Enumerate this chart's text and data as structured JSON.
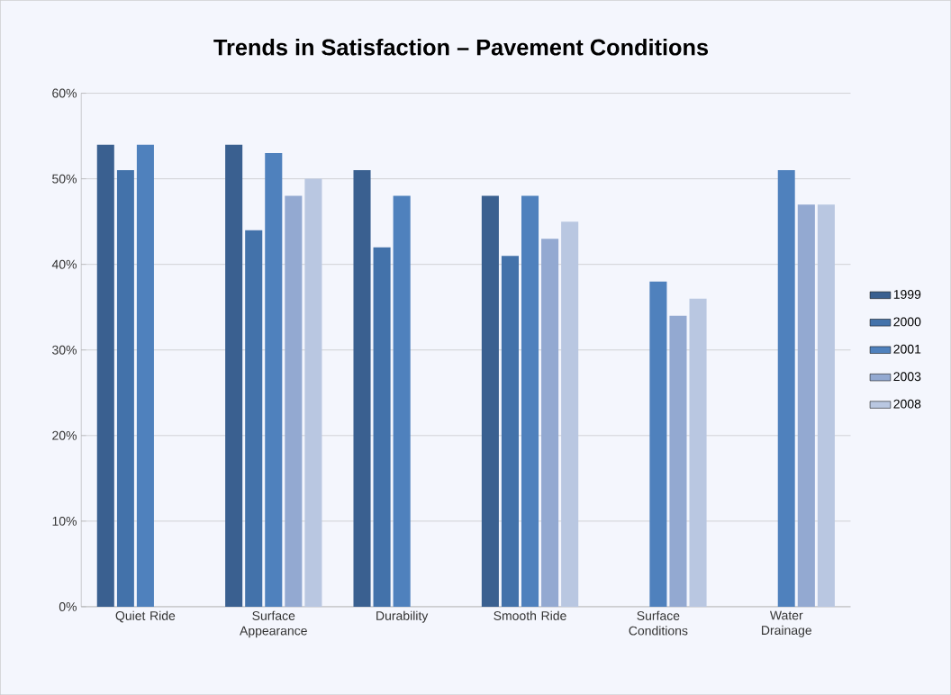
{
  "chart_data": {
    "type": "bar",
    "title": "Trends in Satisfaction – Pavement Conditions",
    "categories": [
      "Quiet Ride",
      "Surface Appearance",
      "Durability",
      "Smooth Ride",
      "Surface Conditions",
      "Water Drainage"
    ],
    "series": [
      {
        "name": "1999",
        "color": "#3a6090",
        "values": [
          54,
          54,
          51,
          48,
          null,
          null
        ]
      },
      {
        "name": "2000",
        "color": "#4372aa",
        "values": [
          51,
          44,
          42,
          41,
          null,
          null
        ]
      },
      {
        "name": "2001",
        "color": "#4f81bd",
        "values": [
          54,
          53,
          48,
          48,
          38,
          51
        ]
      },
      {
        "name": "2003",
        "color": "#93a9d1",
        "values": [
          null,
          48,
          null,
          43,
          34,
          47
        ]
      },
      {
        "name": "2008",
        "color": "#b9c7e1",
        "values": [
          null,
          50,
          null,
          45,
          36,
          47
        ]
      }
    ],
    "ylim": [
      0,
      60
    ],
    "yticks": [
      {
        "value": 0,
        "label": "0%"
      },
      {
        "value": 10,
        "label": "10%"
      },
      {
        "value": 20,
        "label": "20%"
      },
      {
        "value": 30,
        "label": "30%"
      },
      {
        "value": 40,
        "label": "40%"
      },
      {
        "value": 50,
        "label": "50%"
      },
      {
        "value": 60,
        "label": "60%"
      }
    ],
    "grid": "y",
    "legend": "right"
  }
}
